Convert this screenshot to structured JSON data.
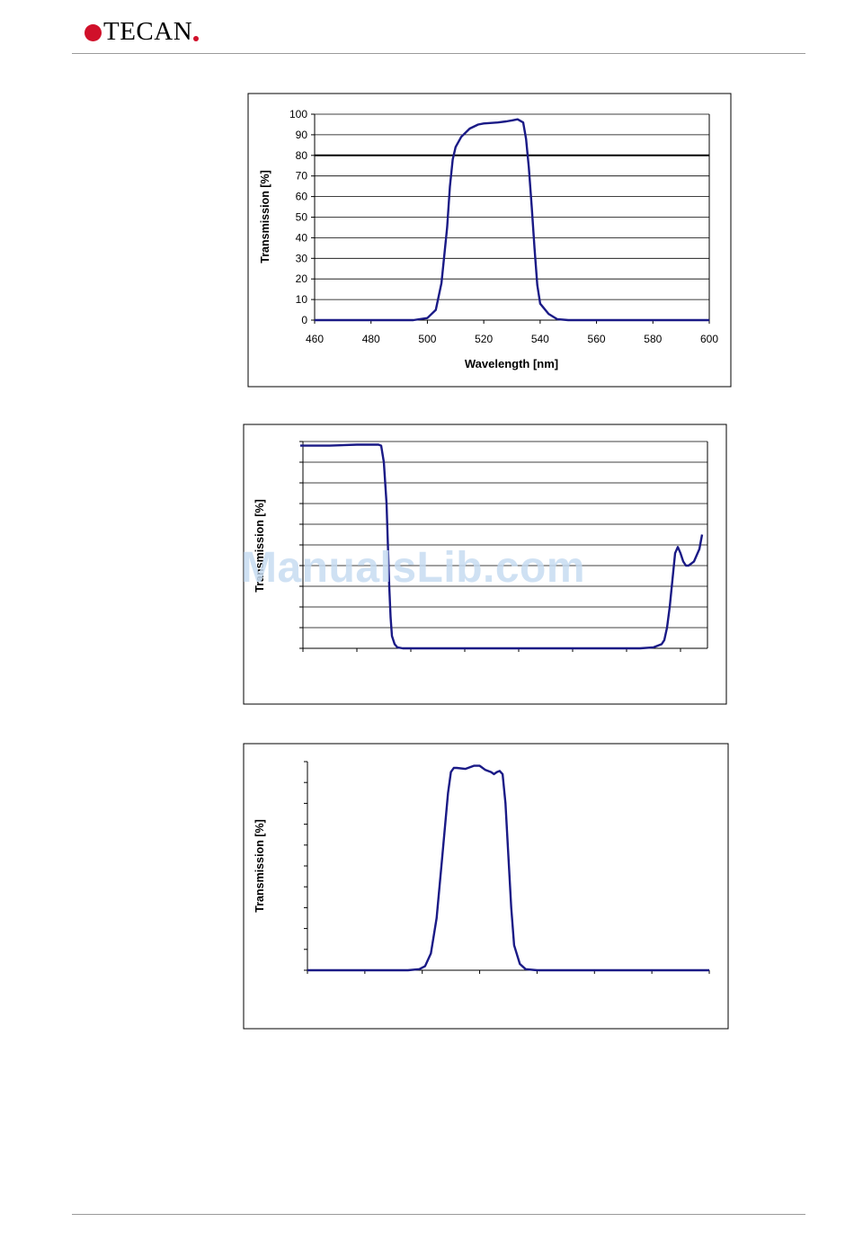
{
  "header": {
    "logo_text": "TECAN",
    "brand_color": "#d0102a"
  },
  "watermark": "ManualsLib.com",
  "colors": {
    "curve": "#1a1a86",
    "grid": "#000000",
    "frame": "#000000"
  },
  "chart_data": [
    {
      "type": "line",
      "xlabel": "Wavelength [nm]",
      "ylabel": "Transmission [%]",
      "xlim": [
        460,
        600
      ],
      "ylim": [
        0,
        100
      ],
      "x_ticks": [
        460,
        480,
        500,
        520,
        540,
        560,
        580,
        600
      ],
      "y_ticks": [
        0,
        10,
        20,
        30,
        40,
        50,
        60,
        70,
        80,
        90,
        100
      ],
      "show_tick_labels": true,
      "grid": true,
      "reference_line": 80,
      "series": [
        {
          "x": [
            460,
            495,
            500,
            503,
            505,
            507,
            508,
            509,
            510,
            512,
            515,
            518,
            520,
            525,
            528,
            530,
            532,
            534,
            535,
            536,
            537,
            538,
            539,
            540,
            543,
            546,
            550,
            560,
            600
          ],
          "y": [
            0,
            0,
            1,
            5,
            18,
            45,
            65,
            78,
            84,
            89,
            93,
            95,
            95.5,
            96,
            96.5,
            97,
            97.5,
            96,
            88,
            74,
            55,
            35,
            17,
            8,
            3,
            0.5,
            0,
            0,
            0
          ]
        }
      ]
    },
    {
      "type": "line",
      "ylabel": "Transmission [%]",
      "xlim": [
        460,
        610
      ],
      "ylim": [
        0,
        100
      ],
      "x_ticks": [
        460,
        480,
        500,
        520,
        540,
        560,
        580,
        600
      ],
      "y_ticks": [
        0,
        10,
        20,
        30,
        40,
        50,
        60,
        70,
        80,
        90,
        100
      ],
      "show_tick_labels": false,
      "grid": true,
      "series": [
        {
          "x": [
            459,
            470,
            480,
            488,
            489,
            490,
            491,
            491.5,
            492,
            492.5,
            493,
            494,
            495,
            497,
            500,
            520,
            550,
            585,
            590,
            593,
            594,
            595,
            596,
            597,
            598,
            599,
            600,
            601,
            602,
            603,
            605,
            607,
            608
          ],
          "y": [
            98,
            98,
            98.5,
            98.5,
            98,
            90,
            70,
            50,
            30,
            15,
            6,
            2,
            0.5,
            0,
            0,
            0,
            0,
            0,
            0.5,
            2,
            4,
            10,
            20,
            33,
            46,
            49,
            46,
            42,
            40,
            40,
            42,
            48,
            55
          ]
        }
      ]
    },
    {
      "type": "line",
      "ylabel": "Transmission [%]",
      "xlim": [
        460,
        600
      ],
      "ylim": [
        0,
        100
      ],
      "x_ticks": [
        460,
        480,
        500,
        520,
        540,
        560,
        580,
        600
      ],
      "y_ticks": [
        0,
        10,
        20,
        30,
        40,
        50,
        60,
        70,
        80,
        90,
        100
      ],
      "show_tick_labels": false,
      "grid": false,
      "series": [
        {
          "x": [
            460,
            495,
            499,
            501,
            503,
            505,
            507,
            509,
            510,
            511,
            512,
            515,
            518,
            520,
            522,
            524,
            525,
            526,
            527,
            528,
            529,
            530,
            531,
            532,
            534,
            536,
            540,
            600
          ],
          "y": [
            0,
            0,
            0.5,
            2,
            8,
            25,
            55,
            85,
            95,
            97,
            97,
            96.5,
            98,
            98,
            96,
            95,
            94,
            95,
            95.5,
            94,
            80,
            55,
            30,
            12,
            3,
            0.5,
            0,
            0
          ]
        }
      ]
    }
  ]
}
